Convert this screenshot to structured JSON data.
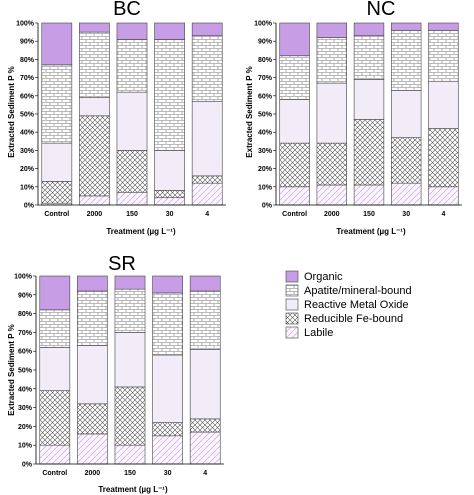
{
  "colors": {
    "organic": "#c79de6",
    "apatite": "#ffffff",
    "reactive": "#f1ecf8",
    "reducible": "#ffffff",
    "labile": "#fbf6fd",
    "stroke": "#444444"
  },
  "legend": {
    "items": [
      {
        "key": "organic",
        "label": "Organic"
      },
      {
        "key": "apatite",
        "label": "Apatite/mineral-bound"
      },
      {
        "key": "reactive",
        "label": "Reactive Metal Oxide"
      },
      {
        "key": "reducible",
        "label": "Reducible Fe-bound"
      },
      {
        "key": "labile",
        "label": "Labile"
      }
    ]
  },
  "chart_data": [
    {
      "type": "bar",
      "stacked": true,
      "title": "BC",
      "xlabel": "Treatment (µg L⁻¹)",
      "ylabel": "Extracted Sediment P %",
      "ylim": [
        0,
        100
      ],
      "yticks": [
        "0%",
        "10%",
        "20%",
        "30%",
        "40%",
        "50%",
        "60%",
        "70%",
        "80%",
        "90%",
        "100%"
      ],
      "categories": [
        "Control",
        "2000",
        "150",
        "30",
        "4"
      ],
      "series": [
        {
          "name": "Labile",
          "key": "labile",
          "values": [
            1,
            5,
            7,
            4,
            12
          ]
        },
        {
          "name": "Reducible Fe-bound",
          "key": "reducible",
          "values": [
            12,
            44,
            23,
            4,
            4
          ]
        },
        {
          "name": "Reactive Metal Oxide",
          "key": "reactive",
          "values": [
            21,
            10,
            32,
            22,
            41
          ]
        },
        {
          "name": "Apatite/mineral-bound",
          "key": "apatite",
          "values": [
            43,
            36,
            29,
            61,
            36
          ]
        },
        {
          "name": "Organic",
          "key": "organic",
          "values": [
            23,
            5,
            9,
            9,
            7
          ]
        }
      ]
    },
    {
      "type": "bar",
      "stacked": true,
      "title": "NC",
      "xlabel": "Treatment (µg L⁻¹)",
      "ylabel": "Extracted Sediment P %",
      "ylim": [
        0,
        100
      ],
      "yticks": [
        "0%",
        "10%",
        "20%",
        "30%",
        "40%",
        "50%",
        "60%",
        "70%",
        "80%",
        "90%",
        "100%"
      ],
      "categories": [
        "Control",
        "2000",
        "150",
        "30",
        "4"
      ],
      "series": [
        {
          "name": "Labile",
          "key": "labile",
          "values": [
            10,
            11,
            11,
            12,
            10
          ]
        },
        {
          "name": "Reducible Fe-bound",
          "key": "reducible",
          "values": [
            24,
            23,
            36,
            25,
            32
          ]
        },
        {
          "name": "Reactive Metal Oxide",
          "key": "reactive",
          "values": [
            24,
            33,
            22,
            26,
            26
          ]
        },
        {
          "name": "Apatite/mineral-bound",
          "key": "apatite",
          "values": [
            24,
            25,
            24,
            33,
            28
          ]
        },
        {
          "name": "Organic",
          "key": "organic",
          "values": [
            18,
            8,
            7,
            4,
            4
          ]
        }
      ]
    },
    {
      "type": "bar",
      "stacked": true,
      "title": "SR",
      "xlabel": "Treatment (µg L⁻¹)",
      "ylabel": "Extracted Sediment P %",
      "ylim": [
        0,
        100
      ],
      "yticks": [
        "0%",
        "10%",
        "20%",
        "30%",
        "40%",
        "50%",
        "60%",
        "70%",
        "80%",
        "90%",
        "100%"
      ],
      "categories": [
        "Control",
        "2000",
        "150",
        "30",
        "4"
      ],
      "series": [
        {
          "name": "Labile",
          "key": "labile",
          "values": [
            10,
            16,
            10,
            15,
            17
          ]
        },
        {
          "name": "Reducible Fe-bound",
          "key": "reducible",
          "values": [
            29,
            16,
            31,
            7,
            7
          ]
        },
        {
          "name": "Reactive Metal Oxide",
          "key": "reactive",
          "values": [
            23,
            31,
            29,
            36,
            37
          ]
        },
        {
          "name": "Apatite/mineral-bound",
          "key": "apatite",
          "values": [
            20,
            29,
            23,
            33,
            31
          ]
        },
        {
          "name": "Organic",
          "key": "organic",
          "values": [
            18,
            8,
            7,
            9,
            8
          ]
        }
      ]
    }
  ]
}
